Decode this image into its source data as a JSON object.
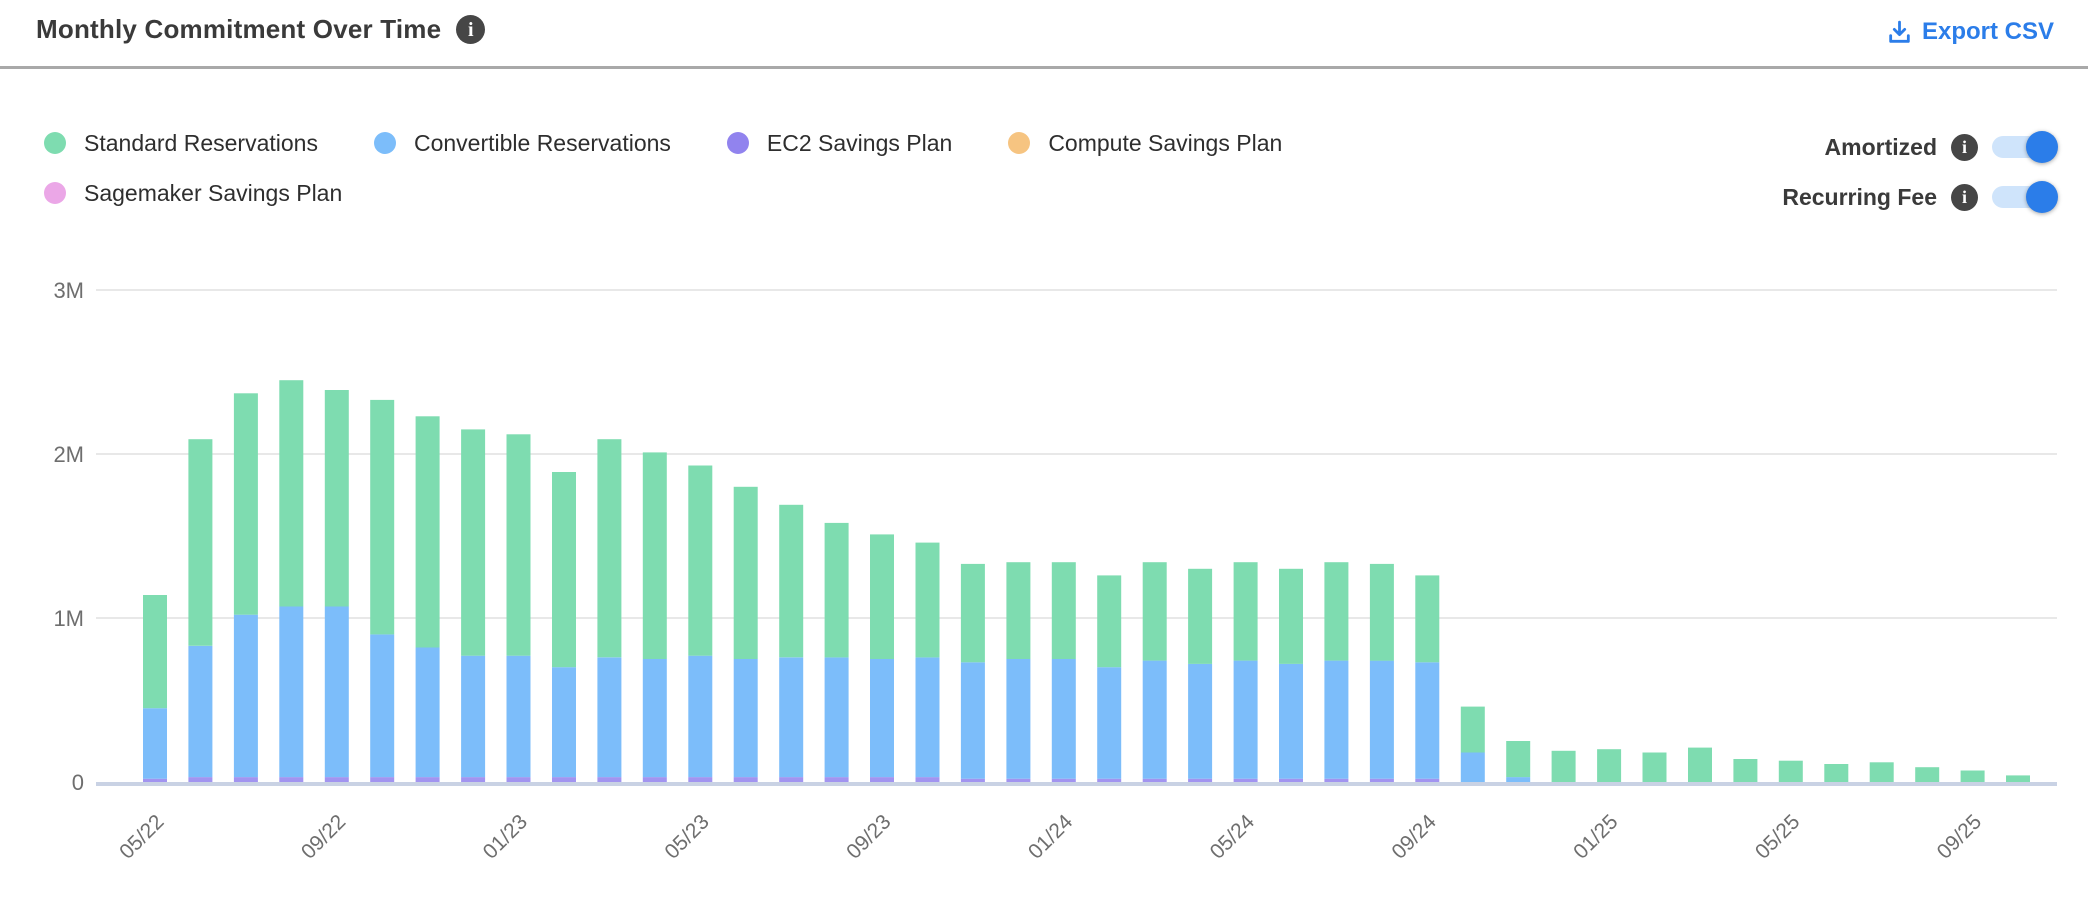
{
  "header": {
    "title": "Monthly Commitment Over Time",
    "title_info_icon": "i",
    "export_label": "Export CSV"
  },
  "legend": {
    "items": [
      {
        "label": "Standard Reservations",
        "color": "#7edcb0"
      },
      {
        "label": "Convertible Reservations",
        "color": "#7cbdfa"
      },
      {
        "label": "EC2 Savings Plan",
        "color": "#9183ee"
      },
      {
        "label": "Compute Savings Plan",
        "color": "#f6c481"
      },
      {
        "label": "Sagemaker Savings Plan",
        "color": "#eba7e7"
      }
    ]
  },
  "toggles": [
    {
      "label": "Amortized",
      "state": "on"
    },
    {
      "label": "Recurring Fee",
      "state": "on"
    }
  ],
  "colors": {
    "accent_blue": "#2b7de9",
    "toggle_track": "#cfe4fb",
    "title_text": "#3a3a3a",
    "axis_text": "#6e6e6e",
    "grid_line": "#e8e8e8",
    "axis_line": "#c9d2e4",
    "info_icon_bg": "#464646",
    "divider": "#a9a9a9"
  },
  "chart_data": {
    "type": "bar",
    "stacked": true,
    "title": "Monthly Commitment Over Time",
    "xlabel": "",
    "ylabel": "",
    "unit": "millions",
    "ylim": [
      0,
      3
    ],
    "yticks": [
      {
        "label": "0",
        "value": 0
      },
      {
        "label": "1M",
        "value": 1
      },
      {
        "label": "2M",
        "value": 2
      },
      {
        "label": "3M",
        "value": 3
      }
    ],
    "grid": true,
    "legend_position": "top",
    "x_tick_every": 4,
    "categories": [
      "05/22",
      "06/22",
      "07/22",
      "08/22",
      "09/22",
      "10/22",
      "11/22",
      "12/22",
      "01/23",
      "02/23",
      "03/23",
      "04/23",
      "05/23",
      "06/23",
      "07/23",
      "08/23",
      "09/23",
      "10/23",
      "11/23",
      "12/23",
      "01/24",
      "02/24",
      "03/24",
      "04/24",
      "05/24",
      "06/24",
      "07/24",
      "08/24",
      "09/24",
      "10/24",
      "11/24",
      "12/24",
      "01/25",
      "02/25",
      "03/25",
      "04/25",
      "05/25",
      "06/25",
      "07/25",
      "08/25",
      "09/25",
      "10/25"
    ],
    "stack_order": [
      "Sagemaker Savings Plan",
      "Compute Savings Plan",
      "EC2 Savings Plan",
      "Convertible Reservations",
      "Standard Reservations"
    ],
    "series": [
      {
        "name": "Standard Reservations",
        "color": "#7edcb0",
        "values": [
          0.69,
          1.26,
          1.35,
          1.38,
          1.32,
          1.43,
          1.41,
          1.38,
          1.35,
          1.19,
          1.33,
          1.26,
          1.16,
          1.05,
          0.93,
          0.82,
          0.76,
          0.7,
          0.6,
          0.59,
          0.59,
          0.56,
          0.6,
          0.58,
          0.6,
          0.58,
          0.6,
          0.59,
          0.53,
          0.28,
          0.22,
          0.19,
          0.2,
          0.18,
          0.21,
          0.14,
          0.13,
          0.11,
          0.12,
          0.09,
          0.07,
          0.04
        ]
      },
      {
        "name": "Convertible Reservations",
        "color": "#7cbdfa",
        "values": [
          0.43,
          0.8,
          0.99,
          1.04,
          1.04,
          0.87,
          0.79,
          0.74,
          0.74,
          0.67,
          0.73,
          0.72,
          0.74,
          0.72,
          0.73,
          0.73,
          0.72,
          0.73,
          0.71,
          0.73,
          0.73,
          0.68,
          0.72,
          0.7,
          0.72,
          0.7,
          0.72,
          0.72,
          0.71,
          0.18,
          0.03,
          0,
          0,
          0,
          0,
          0,
          0,
          0,
          0,
          0,
          0,
          0
        ]
      },
      {
        "name": "EC2 Savings Plan",
        "color": "#a294f0",
        "values": [
          0.02,
          0.03,
          0.03,
          0.03,
          0.03,
          0.03,
          0.03,
          0.03,
          0.03,
          0.03,
          0.03,
          0.03,
          0.03,
          0.03,
          0.03,
          0.03,
          0.03,
          0.03,
          0.02,
          0.02,
          0.02,
          0.02,
          0.02,
          0.02,
          0.02,
          0.02,
          0.02,
          0.02,
          0.02,
          0,
          0,
          0,
          0,
          0,
          0,
          0,
          0,
          0,
          0,
          0,
          0,
          0
        ]
      },
      {
        "name": "Compute Savings Plan",
        "color": "#f6c481",
        "values": [
          0,
          0,
          0,
          0,
          0,
          0,
          0,
          0,
          0,
          0,
          0,
          0,
          0,
          0,
          0,
          0,
          0,
          0,
          0,
          0,
          0,
          0,
          0,
          0,
          0,
          0,
          0,
          0,
          0,
          0,
          0,
          0,
          0,
          0,
          0,
          0,
          0,
          0,
          0,
          0,
          0,
          0
        ]
      },
      {
        "name": "Sagemaker Savings Plan",
        "color": "#eba7e7",
        "values": [
          0,
          0,
          0,
          0,
          0,
          0,
          0,
          0,
          0,
          0,
          0,
          0,
          0,
          0,
          0,
          0,
          0,
          0,
          0,
          0,
          0,
          0,
          0,
          0,
          0,
          0,
          0,
          0,
          0,
          0,
          0,
          0,
          0,
          0,
          0,
          0,
          0,
          0,
          0,
          0,
          0,
          0
        ]
      }
    ]
  }
}
